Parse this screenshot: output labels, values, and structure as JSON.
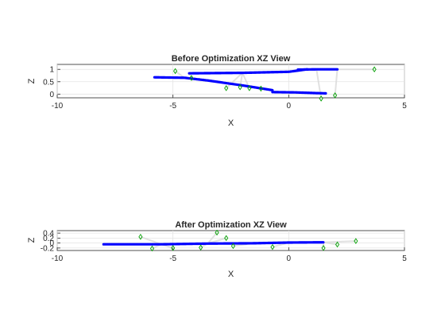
{
  "chart_data": [
    {
      "type": "scatter",
      "title": "Before Optimization XZ View",
      "xlabel": "X",
      "ylabel": "Z",
      "xlim": [
        -10,
        5
      ],
      "ylim": [
        -0.15,
        1.2
      ],
      "xticks": [
        -10,
        -5,
        0,
        5
      ],
      "yticks": [
        0,
        0.5,
        1
      ],
      "xtick_labels": [
        "-10",
        "-5",
        "0",
        "5"
      ],
      "ytick_labels": [
        "0",
        "0.5",
        "1"
      ],
      "grid": true,
      "series": [
        {
          "role": "trajectory",
          "color": "#0000ff",
          "segments": [
            {
              "x": [
                -4.3,
                -2.0,
                0.0,
                0.8
              ],
              "y": [
                0.84,
                0.86,
                0.9,
                1.0
              ]
            },
            {
              "x": [
                0.4,
                1.2,
                2.1
              ],
              "y": [
                0.99,
                1.0,
                1.0
              ]
            },
            {
              "x": [
                -5.8,
                -4.5,
                -3.5,
                -2.0,
                -0.7
              ],
              "y": [
                0.68,
                0.66,
                0.55,
                0.35,
                0.16
              ]
            },
            {
              "x": [
                -0.7,
                0.3,
                1.2,
                1.6
              ],
              "y": [
                0.08,
                0.07,
                0.04,
                0.03
              ]
            }
          ]
        },
        {
          "role": "landmarks",
          "color": "#00a000",
          "marker": "diamond",
          "x": [
            -4.9,
            -4.2,
            -2.7,
            -2.1,
            -1.7,
            -1.2,
            1.4,
            2.0,
            3.7
          ],
          "y": [
            0.93,
            0.65,
            0.24,
            0.28,
            0.24,
            0.22,
            -0.18,
            -0.05,
            1.0
          ]
        }
      ]
    },
    {
      "type": "scatter",
      "title": "After Optimization XZ View",
      "xlabel": "X",
      "ylabel": "Z",
      "xlim": [
        -10,
        5
      ],
      "ylim": [
        -0.3,
        0.5
      ],
      "xticks": [
        -10,
        -5,
        0,
        5
      ],
      "yticks": [
        -0.2,
        0,
        0.2,
        0.4
      ],
      "xtick_labels": [
        "-10",
        "-5",
        "0",
        "5"
      ],
      "ytick_labels": [
        "-0.2",
        "0",
        "0.2",
        "0.4"
      ],
      "grid": true,
      "series": [
        {
          "role": "trajectory",
          "color": "#0000ff",
          "segments": [
            {
              "x": [
                -8.0,
                -5.5,
                -3.5,
                -1.5,
                0.0,
                1.5
              ],
              "y": [
                -0.05,
                -0.05,
                -0.02,
                -0.01,
                0.02,
                0.03
              ]
            }
          ]
        },
        {
          "role": "landmarks",
          "color": "#00a000",
          "marker": "diamond",
          "x": [
            -6.4,
            -5.9,
            -5.0,
            -3.8,
            -3.1,
            -2.7,
            -2.4,
            -0.7,
            1.5,
            2.1,
            2.9
          ],
          "y": [
            0.25,
            -0.22,
            -0.2,
            -0.18,
            0.42,
            0.2,
            -0.12,
            -0.16,
            -0.2,
            -0.06,
            0.08
          ]
        }
      ]
    }
  ]
}
